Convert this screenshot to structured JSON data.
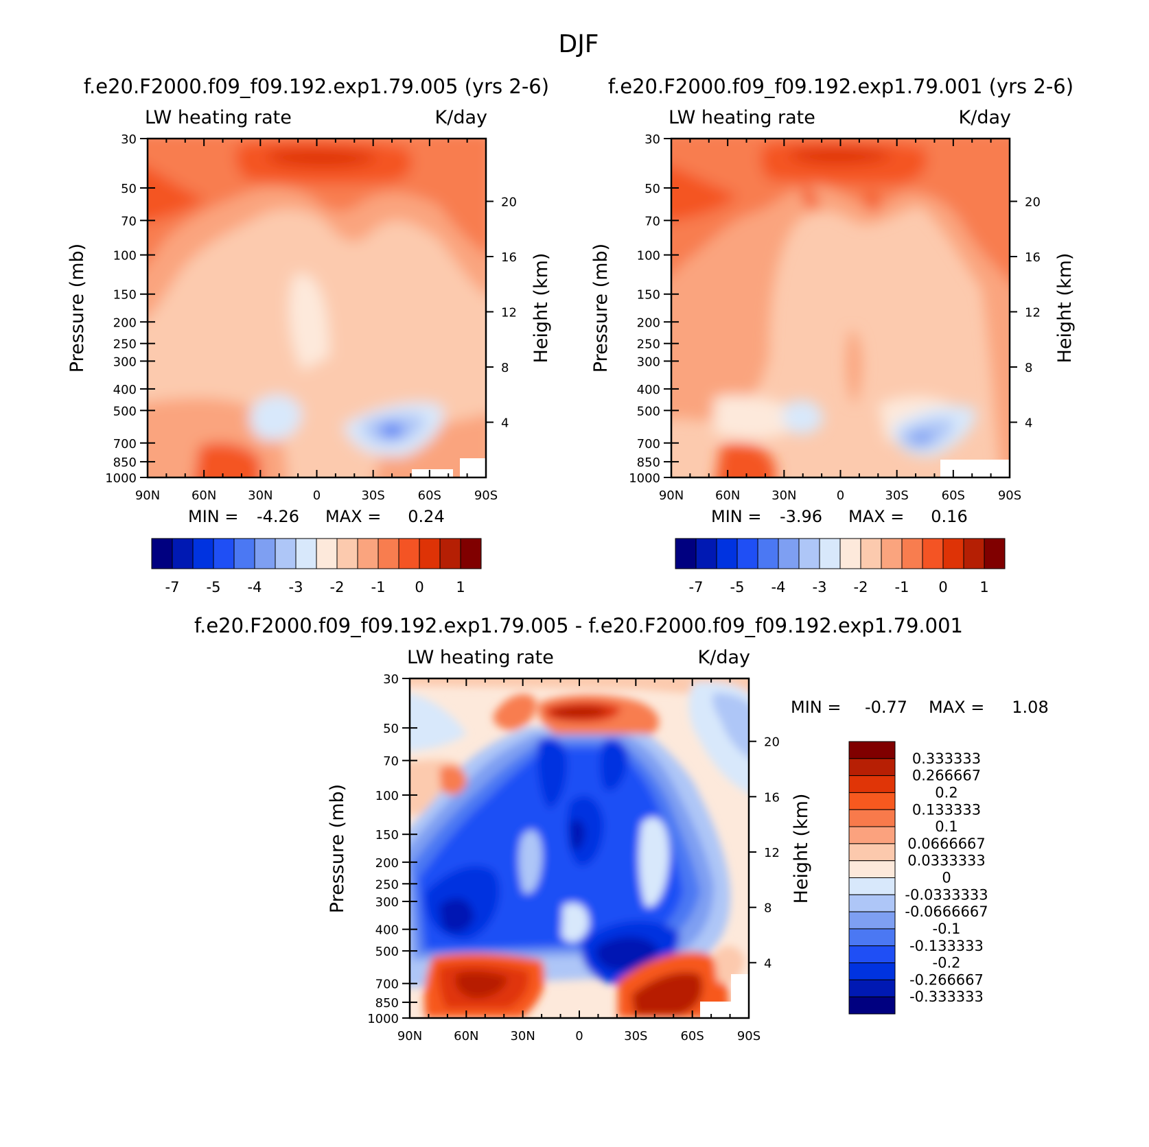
{
  "chart_data": {
    "type": "heatmap",
    "title": "DJF",
    "panels": [
      {
        "id": "case1",
        "case_title": "f.e20.F2000.f09_f09.192.exp1.79.005 (yrs 2-6)",
        "left_label": "LW heating rate",
        "right_label": "K/day",
        "xlabel": "",
        "ylabel": "Pressure (mb)",
        "y2label": "Height (km)",
        "x_ticks": [
          "90N",
          "60N",
          "30N",
          "0",
          "30S",
          "60S",
          "90S"
        ],
        "y_ticks": [
          "30",
          "50",
          "70",
          "100",
          "150",
          "200",
          "250",
          "300",
          "400",
          "500",
          "700",
          "850",
          "1000"
        ],
        "y_range": [
          1000,
          30
        ],
        "height_ticks": [
          "20",
          "16",
          "12",
          "8",
          "4"
        ],
        "min_label": "MIN =",
        "min": "-4.26",
        "max_label": "MAX =",
        "max": "0.24",
        "colorbar_labels": [
          "-7",
          "-5",
          "-4",
          "-3",
          "-2",
          "-1",
          "0",
          "1"
        ]
      },
      {
        "id": "case2",
        "case_title": "f.e20.F2000.f09_f09.192.exp1.79.001 (yrs 2-6)",
        "left_label": "LW heating rate",
        "right_label": "K/day",
        "xlabel": "",
        "ylabel": "Pressure (mb)",
        "y2label": "Height (km)",
        "x_ticks": [
          "90N",
          "60N",
          "30N",
          "0",
          "30S",
          "60S",
          "90S"
        ],
        "y_ticks": [
          "30",
          "50",
          "70",
          "100",
          "150",
          "200",
          "250",
          "300",
          "400",
          "500",
          "700",
          "850",
          "1000"
        ],
        "y_range": [
          1000,
          30
        ],
        "height_ticks": [
          "20",
          "16",
          "12",
          "8",
          "4"
        ],
        "min_label": "MIN =",
        "min": "-3.96",
        "max_label": "MAX =",
        "max": "0.16",
        "colorbar_labels": [
          "-7",
          "-5",
          "-4",
          "-3",
          "-2",
          "-1",
          "0",
          "1"
        ]
      },
      {
        "id": "diff",
        "case_title": "f.e20.F2000.f09_f09.192.exp1.79.005 - f.e20.F2000.f09_f09.192.exp1.79.001",
        "left_label": "LW heating rate",
        "right_label": "K/day",
        "xlabel": "",
        "ylabel": "Pressure (mb)",
        "y2label": "Height (km)",
        "x_ticks": [
          "90N",
          "60N",
          "30N",
          "0",
          "30S",
          "60S",
          "90S"
        ],
        "y_ticks": [
          "30",
          "50",
          "70",
          "100",
          "150",
          "200",
          "250",
          "300",
          "400",
          "500",
          "700",
          "850",
          "1000"
        ],
        "y_range": [
          1000,
          30
        ],
        "height_ticks": [
          "20",
          "16",
          "12",
          "8",
          "4"
        ],
        "min_label": "MIN =",
        "min": "-0.77",
        "max_label": "MAX =",
        "max": "1.08",
        "colorbar_labels": [
          "0.333333",
          "0.266667",
          "0.2",
          "0.133333",
          "0.1",
          "0.0666667",
          "0.0333333",
          "0",
          "-0.0333333",
          "-0.0666667",
          "-0.1",
          "-0.133333",
          "-0.2",
          "-0.266667",
          "-0.333333"
        ]
      }
    ],
    "palette_case": [
      "#000080",
      "#0019b3",
      "#0033e0",
      "#1f4ff5",
      "#4b78f3",
      "#7e9ff2",
      "#aec6f7",
      "#d8e8fb",
      "#fde9db",
      "#fccaae",
      "#faa47e",
      "#f87d4f",
      "#f45424",
      "#de3306",
      "#b51f04",
      "#800000"
    ],
    "palette_diff": [
      "#800000",
      "#b71f04",
      "#e03507",
      "#f7591f",
      "#f87a4b",
      "#fba27e",
      "#fcc9ad",
      "#fde9db",
      "#d8e8fb",
      "#aec6f7",
      "#7e9ff2",
      "#4b78f3",
      "#1f4ff5",
      "#0033e0",
      "#0019b3",
      "#000080"
    ]
  }
}
